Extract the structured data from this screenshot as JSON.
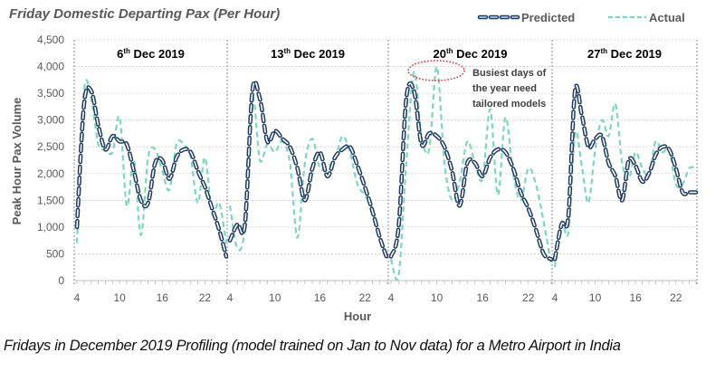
{
  "chart_data": {
    "type": "line",
    "title": "Friday Domestic Departing Pax (Per Hour)",
    "xlabel": "Hour",
    "ylabel": "Peak Hour Pax Volume",
    "ylim": [
      0,
      4500
    ],
    "y_ticks": [
      "0",
      "500",
      "1,000",
      "1,500",
      "2,000",
      "2,500",
      "3,000",
      "3,500",
      "4,000",
      "4,500"
    ],
    "y_tick_values": [
      0,
      500,
      1000,
      1500,
      2000,
      2500,
      3000,
      3500,
      4000,
      4500
    ],
    "x_tick_labels": [
      "4",
      "10",
      "16",
      "22"
    ],
    "x_tick_hours": [
      4,
      10,
      16,
      22
    ],
    "grid": true,
    "legend": {
      "position": "top-right",
      "entries": [
        "Predicted",
        "Actual"
      ]
    },
    "colors": {
      "predicted": "#1f3a5f",
      "actual": "#7fd6bf",
      "annotation_ellipse": "#e03131"
    },
    "hours": [
      4,
      5,
      6,
      7,
      8,
      9,
      10,
      11,
      12,
      13,
      14,
      15,
      16,
      17,
      18,
      19,
      20,
      21,
      22,
      23,
      24,
      25
    ],
    "panels": [
      {
        "label_day": "6",
        "label_suffix": "th",
        "label_rest": " Dec 2019",
        "series": [
          {
            "name": "Predicted",
            "values": [
              1000,
              3300,
              3550,
              2900,
              2450,
              2700,
              2600,
              2550,
              2050,
              1500,
              1450,
              2200,
              2250,
              1900,
              2300,
              2450,
              2400,
              2050,
              1750,
              1350,
              950,
              450
            ]
          },
          {
            "name": "Actual",
            "values": [
              700,
              3550,
              3400,
              2550,
              2450,
              2400,
              3050,
              1400,
              2250,
              850,
              2300,
              2450,
              2050,
              1700,
              2550,
              2550,
              2300,
              1450,
              2300,
              1250,
              1450,
              700
            ]
          }
        ]
      },
      {
        "label_day": "13",
        "label_suffix": "th",
        "label_rest": " Dec 2019",
        "series": [
          {
            "name": "Predicted",
            "values": [
              750,
              1050,
              1050,
              3550,
              3400,
              2600,
              2800,
              2650,
              2500,
              2100,
              1500,
              2100,
              2400,
              1950,
              2300,
              2450,
              2500,
              2150,
              1750,
              1300,
              800,
              400
            ]
          },
          {
            "name": "Actual",
            "values": [
              1400,
              600,
              1000,
              3400,
              2250,
              2550,
              2400,
              2600,
              2200,
              800,
              2200,
              2650,
              2100,
              2150,
              2250,
              2700,
              2400,
              1800,
              1600,
              1350,
              800,
              450
            ]
          }
        ]
      },
      {
        "label_day": "20",
        "label_suffix": "th",
        "label_rest": " Dec 2019",
        "series": [
          {
            "name": "Predicted",
            "values": [
              450,
              1000,
              3400,
              3550,
              2550,
              2750,
              2700,
              2500,
              2050,
              1400,
              2200,
              2200,
              1950,
              2300,
              2450,
              2400,
              2100,
              1650,
              1350,
              950,
              500,
              400
            ]
          },
          {
            "name": "Actual",
            "values": [
              400,
              100,
              2200,
              3900,
              2700,
              2450,
              4000,
              2200,
              1500,
              1850,
              2600,
              2200,
              1900,
              3200,
              1600,
              3050,
              2000,
              1500,
              2100,
              1800,
              1100,
              300
            ]
          }
        ]
      },
      {
        "label_day": "27",
        "label_suffix": "th",
        "label_rest": " Dec 2019",
        "series": [
          {
            "name": "Predicted",
            "values": [
              400,
              1050,
              1200,
              3550,
              3100,
              2500,
              2650,
              2700,
              2200,
              1950,
              1500,
              2250,
              2150,
              1850,
              2000,
              2350,
              2500,
              2450,
              2100,
              1650,
              1650,
              1650
            ]
          },
          {
            "name": "Actual",
            "values": [
              250,
              1100,
              900,
              2750,
              2150,
              1450,
              2450,
              3000,
              2700,
              3300,
              2200,
              1900,
              2400,
              2100,
              2000,
              2600,
              2400,
              2450,
              1800,
              1800,
              2100,
              2100
            ]
          }
        ]
      }
    ],
    "annotation": {
      "lines": [
        "Busiest days of",
        "the year need",
        "tailored models"
      ],
      "target_panel": 2
    }
  },
  "caption": "Fridays in December 2019 Profiling (model trained on Jan to Nov data) for a Metro Airport in India"
}
